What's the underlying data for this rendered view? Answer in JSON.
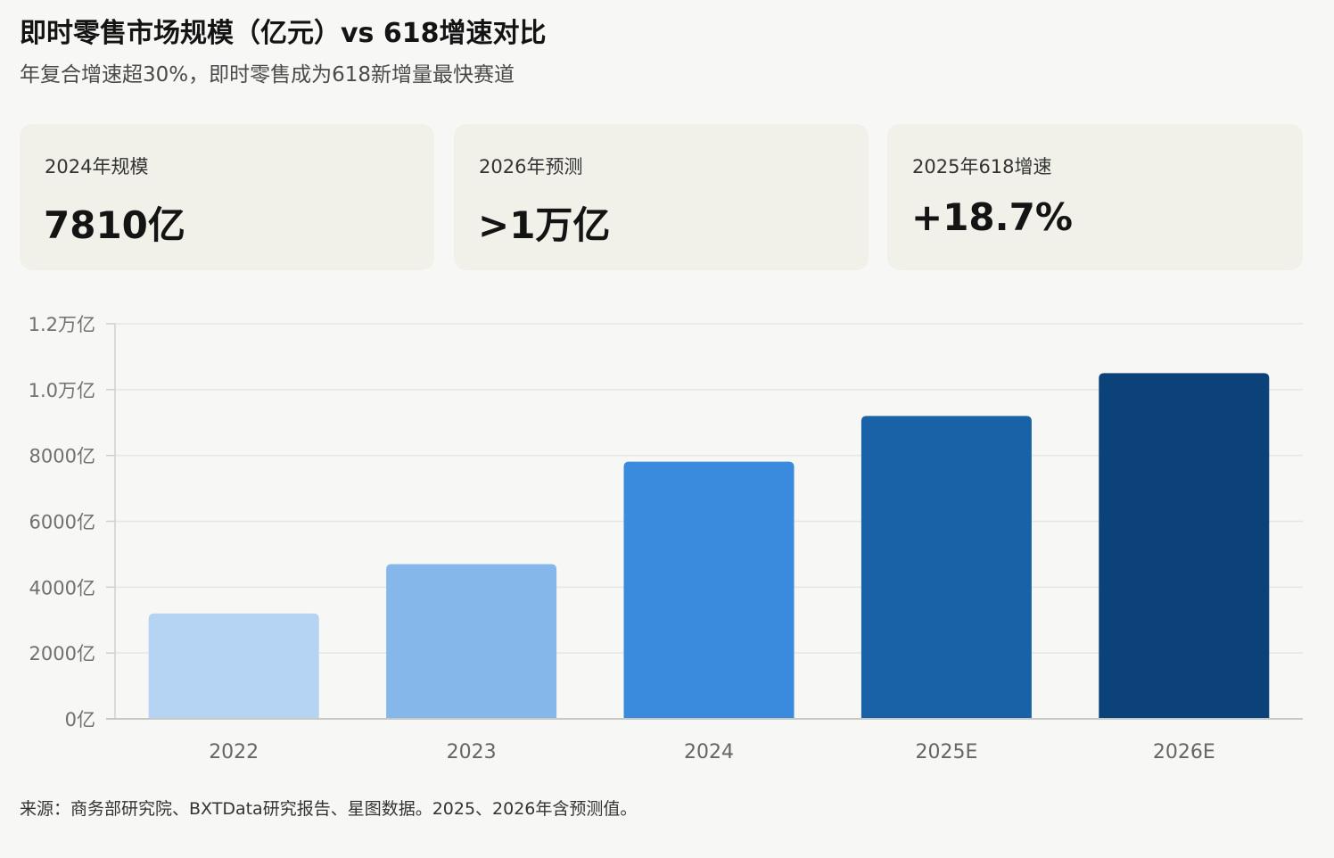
{
  "header": {
    "title": "即时零售市场规模（亿元）vs 618增速对比",
    "subtitle": "年复合增速超30%，即时零售成为618新增量最快赛道"
  },
  "cards": [
    {
      "label": "2024年规模",
      "value": "7810亿"
    },
    {
      "label": "2026年预测",
      "value": ">1万亿"
    },
    {
      "label": "2025年618增速",
      "value": "+18.7%"
    }
  ],
  "chart_data": {
    "type": "bar",
    "categories": [
      "2022",
      "2023",
      "2024",
      "2025E",
      "2026E"
    ],
    "values": [
      3200,
      4700,
      7810,
      9200,
      10500
    ],
    "colors": [
      "#b5d3f3",
      "#86b7ea",
      "#3a8ade",
      "#1a62a8",
      "#0c427a"
    ],
    "ylim": [
      0,
      12000
    ],
    "yticks": [
      0,
      2000,
      4000,
      6000,
      8000,
      10000,
      12000
    ],
    "ytick_labels": [
      "0亿",
      "2000亿",
      "4000亿",
      "6000亿",
      "8000亿",
      "1.0万亿",
      "1.2万亿"
    ],
    "grid": true
  },
  "footer": {
    "source": "来源：商务部研究院、BXTData研究报告、星图数据。2025、2026年含预测值。"
  }
}
